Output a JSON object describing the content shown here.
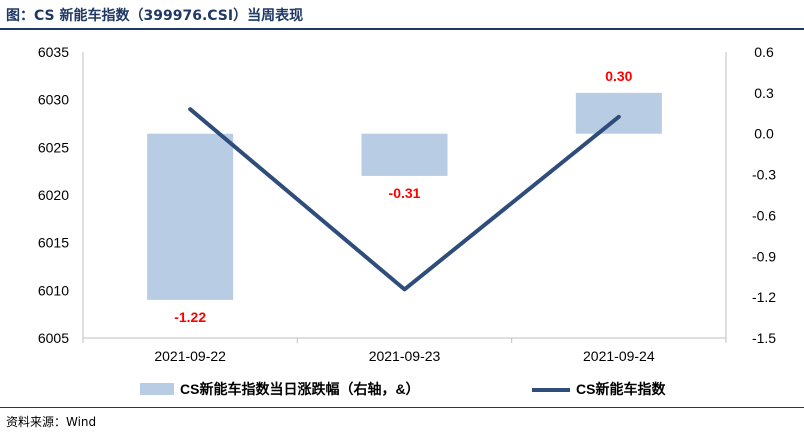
{
  "title": "图：CS 新能车指数（399976.CSI）当周表现",
  "source": "资料来源：Wind",
  "chart_data": {
    "type": "bar+line",
    "categories": [
      "2021-09-22",
      "2021-09-23",
      "2021-09-24"
    ],
    "series": [
      {
        "name": "CS新能车指数当日涨跌幅（右轴，&）",
        "type": "bar",
        "axis": "right",
        "values": [
          -1.22,
          -0.31,
          0.3
        ],
        "color": "#b8cce4",
        "labels": [
          "-1.22",
          "-0.31",
          "0.30"
        ],
        "label_color": "#ff0000"
      },
      {
        "name": "CS新能车指数",
        "type": "line",
        "axis": "left",
        "values": [
          6029.0,
          6010.1,
          6028.2
        ],
        "color": "#2e4d7b"
      }
    ],
    "y_left": {
      "min": 6005,
      "max": 6035,
      "ticks": [
        "6035",
        "6030",
        "6025",
        "6020",
        "6015",
        "6010",
        "6005"
      ]
    },
    "y_right": {
      "min": -1.5,
      "max": 0.6,
      "ticks": [
        "0.6",
        "0.3",
        "0.0",
        "-0.3",
        "-0.6",
        "-0.9",
        "-1.2",
        "-1.5"
      ]
    },
    "grid": false,
    "legend_position": "bottom"
  }
}
